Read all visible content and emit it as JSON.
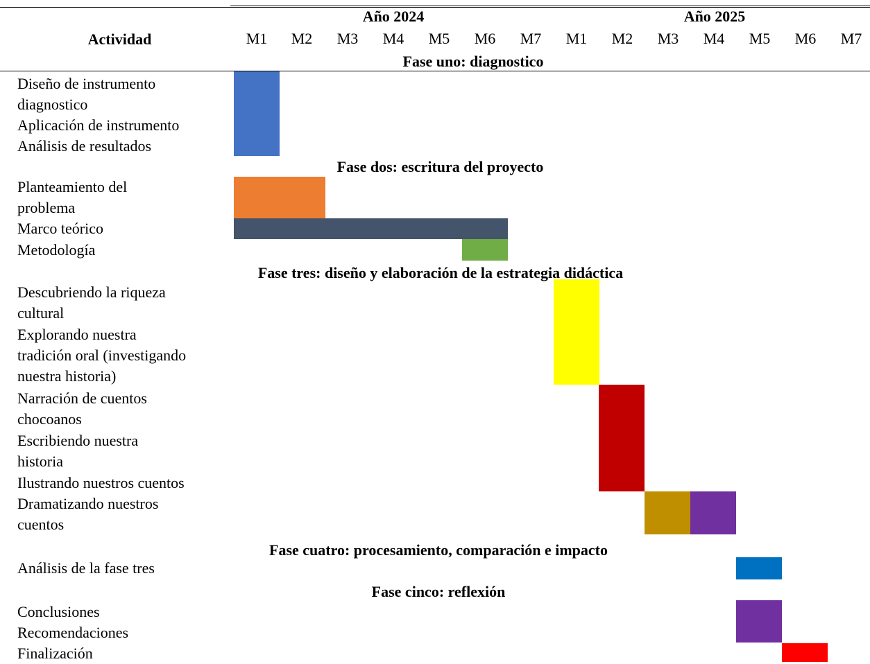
{
  "header": {
    "activity_label": "Actividad",
    "years": [
      "Año 2024",
      "Año 2025"
    ],
    "months": [
      "M1",
      "M2",
      "M3",
      "M4",
      "M5",
      "M6",
      "M7",
      "M1",
      "M2",
      "M3",
      "M4",
      "M5",
      "M6",
      "M7"
    ]
  },
  "phases": [
    {
      "title": "Fase uno: diagnostico"
    },
    {
      "title": "Fase dos: escritura del proyecto"
    },
    {
      "title": "Fase tres: diseño y elaboración de la estrategia didáctica"
    },
    {
      "title": "Fase cuatro: procesamiento, comparación e impacto"
    },
    {
      "title": "Fase cinco: reflexión"
    }
  ],
  "activities": [
    {
      "lines": [
        "Diseño de instrumento",
        "diagnostico"
      ]
    },
    {
      "lines": [
        "Aplicación de instrumento"
      ]
    },
    {
      "lines": [
        "Análisis de resultados"
      ]
    },
    {
      "lines": [
        "Planteamiento del",
        "problema"
      ]
    },
    {
      "lines": [
        "Marco teórico"
      ]
    },
    {
      "lines": [
        "Metodología"
      ]
    },
    {
      "lines": [
        "Descubriendo la riqueza",
        "cultural"
      ]
    },
    {
      "lines": [
        "Explorando nuestra",
        "tradición oral (investigando",
        "nuestra historia)"
      ]
    },
    {
      "lines": [
        "Narración de cuentos",
        "chocoanos"
      ]
    },
    {
      "lines": [
        "Escribiendo nuestra",
        "historia"
      ]
    },
    {
      "lines": [
        "Ilustrando nuestros cuentos"
      ]
    },
    {
      "lines": [
        "Dramatizando nuestros",
        "cuentos"
      ]
    },
    {
      "lines": [
        "Análisis de la fase tres"
      ]
    },
    {
      "lines": [
        "Conclusiones"
      ]
    },
    {
      "lines": [
        "Recomendaciones"
      ]
    },
    {
      "lines": [
        "Finalización"
      ]
    }
  ],
  "bars": [
    {
      "phase": 0,
      "start_month": 1,
      "end_month": 1,
      "color": "#4472C4"
    },
    {
      "phase": 1,
      "start_month": 1,
      "end_month": 2,
      "color": "#ED7D31"
    },
    {
      "phase": 1,
      "start_month": 1,
      "end_month": 6,
      "color": "#44546A"
    },
    {
      "phase": 1,
      "start_month": 6,
      "end_month": 6,
      "color": "#70AD47"
    },
    {
      "phase": 2,
      "start_month": 8,
      "end_month": 8,
      "color": "#FFFF00"
    },
    {
      "phase": 2,
      "start_month": 9,
      "end_month": 9,
      "color": "#C00000"
    },
    {
      "phase": 2,
      "start_month": 10,
      "end_month": 10,
      "color": "#BF8F00"
    },
    {
      "phase": 2,
      "start_month": 11,
      "end_month": 11,
      "color": "#7030A0"
    },
    {
      "phase": 3,
      "start_month": 12,
      "end_month": 12,
      "color": "#0070C0"
    },
    {
      "phase": 4,
      "start_month": 12,
      "end_month": 12,
      "color": "#7030A0"
    },
    {
      "phase": 4,
      "start_month": 13,
      "end_month": 13,
      "color": "#FF0000"
    }
  ]
}
